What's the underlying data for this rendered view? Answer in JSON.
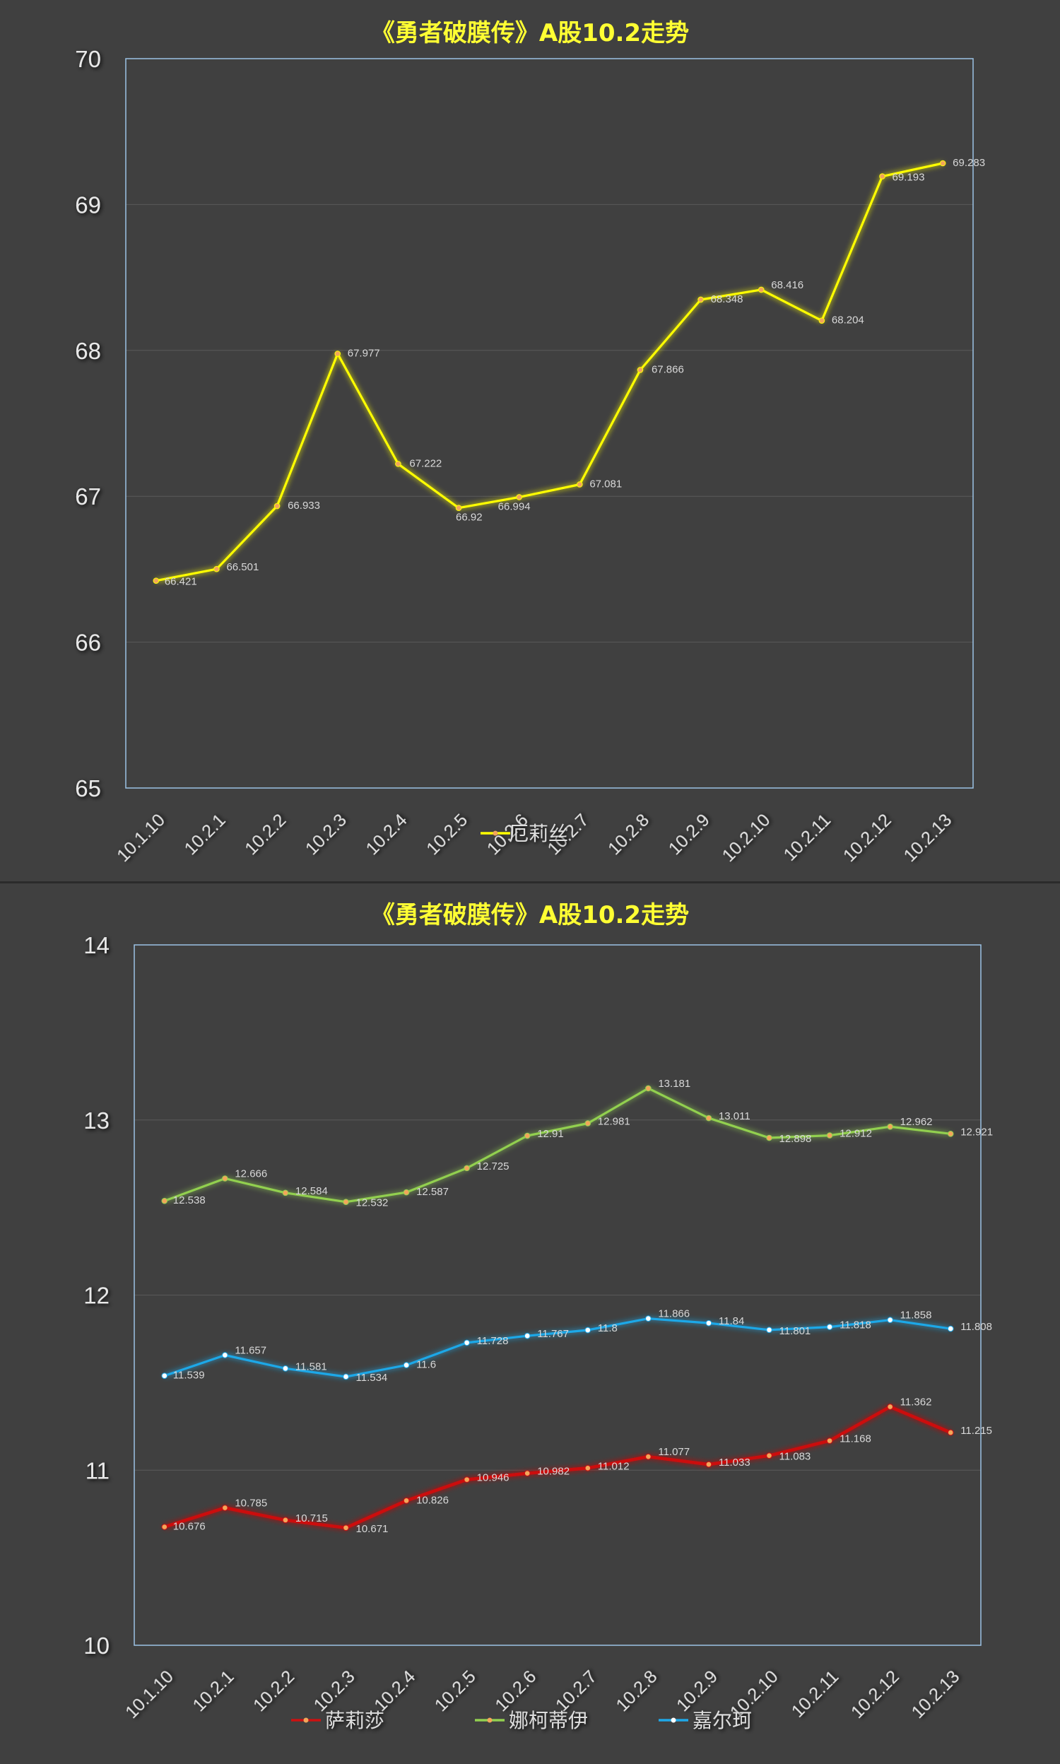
{
  "chart_data": [
    {
      "type": "line",
      "title": "《勇者破膜传》A股10.2走势",
      "categories": [
        "10.1.10",
        "10.2.1",
        "10.2.2",
        "10.2.3",
        "10.2.4",
        "10.2.5",
        "10.2.6",
        "10.2.7",
        "10.2.8",
        "10.2.9",
        "10.2.10",
        "10.2.11",
        "10.2.12",
        "10.2.13"
      ],
      "ylim": [
        65,
        70
      ],
      "yticks": [
        "65",
        "66",
        "67",
        "68",
        "69",
        "70"
      ],
      "grid": true,
      "legend_position": "bottom",
      "series": [
        {
          "name": "厄莉丝",
          "color": "#ffff00",
          "values": [
            66.421,
            66.501,
            66.933,
            67.977,
            67.222,
            66.92,
            66.994,
            67.081,
            67.866,
            68.348,
            68.416,
            68.204,
            69.193,
            69.283
          ],
          "labels": [
            "66.421",
            "66.501",
            "66.933",
            "67.977",
            "67.222",
            "66.92",
            "66.994",
            "67.081",
            "67.866",
            "68.348",
            "68.416",
            "68.204",
            "69.193",
            "69.283"
          ]
        }
      ]
    },
    {
      "type": "line",
      "title": "《勇者破膜传》A股10.2走势",
      "categories": [
        "10.1.10",
        "10.2.1",
        "10.2.2",
        "10.2.3",
        "10.2.4",
        "10.2.5",
        "10.2.6",
        "10.2.7",
        "10.2.8",
        "10.2.9",
        "10.2.10",
        "10.2.11",
        "10.2.12",
        "10.2.13"
      ],
      "ylim": [
        10,
        14
      ],
      "yticks": [
        "10",
        "11",
        "12",
        "13",
        "14"
      ],
      "grid": true,
      "legend_position": "bottom",
      "series": [
        {
          "name": "萨莉莎",
          "color": "#cc1111",
          "values": [
            10.676,
            10.785,
            10.715,
            10.671,
            10.826,
            10.946,
            10.982,
            11.012,
            11.077,
            11.033,
            11.083,
            11.168,
            11.362,
            11.215
          ],
          "labels": [
            "10.676",
            "10.785",
            "10.715",
            "10.671",
            "10.826",
            "10.946",
            "10.982",
            "11.012",
            "11.077",
            "11.033",
            "11.083",
            "11.168",
            "11.362",
            "11.215"
          ]
        },
        {
          "name": "娜柯蒂伊",
          "color": "#92d050",
          "values": [
            12.538,
            12.666,
            12.584,
            12.532,
            12.587,
            12.725,
            12.91,
            12.981,
            13.181,
            13.011,
            12.898,
            12.912,
            12.962,
            12.921
          ],
          "labels": [
            "12.538",
            "12.666",
            "12.584",
            "12.532",
            "12.587",
            "12.725",
            "12.91",
            "12.981",
            "13.181",
            "13.011",
            "12.898",
            "12.912",
            "12.962",
            "12.921"
          ]
        },
        {
          "name": "嘉尔珂",
          "color": "#1fa8e8",
          "values": [
            11.539,
            11.657,
            11.581,
            11.534,
            11.6,
            11.728,
            11.767,
            11.8,
            11.866,
            11.84,
            11.801,
            11.818,
            11.858,
            11.808
          ],
          "labels": [
            "11.539",
            "11.657",
            "11.581",
            "11.534",
            "11.6",
            "11.728",
            "11.767",
            "11.8",
            "11.866",
            "11.84",
            "11.801",
            "11.818",
            "11.858",
            "11.808"
          ]
        }
      ]
    }
  ]
}
